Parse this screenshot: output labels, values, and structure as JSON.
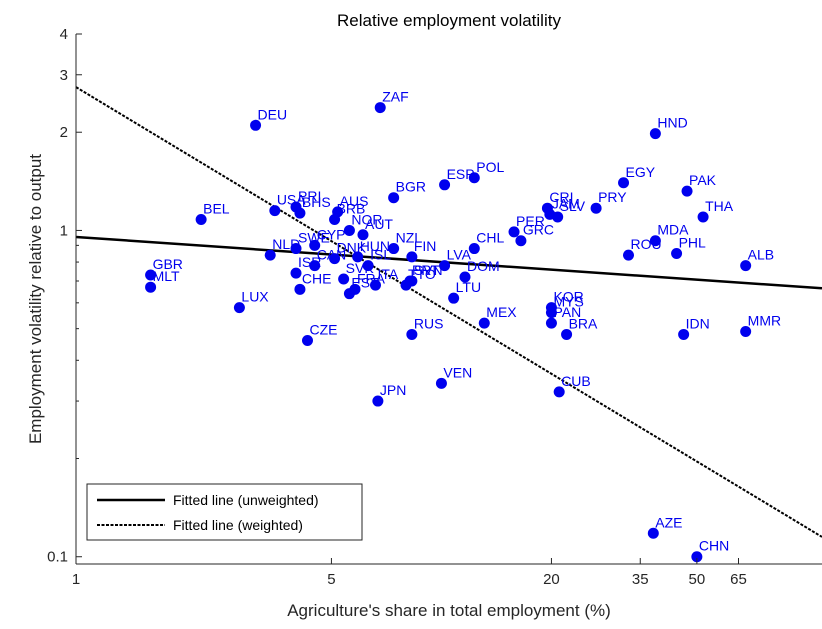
{
  "chart_data": {
    "type": "scatter",
    "title": "Relative employment volatility",
    "xlabel": "Agriculture's share in total employment (%)",
    "ylabel": "Employment volatility relative to output",
    "xscale": "log",
    "yscale": "log",
    "xlim": [
      1,
      110
    ],
    "ylim": [
      0.095,
      4
    ],
    "xticks": [
      {
        "value": 1,
        "label": "1"
      },
      {
        "value": 5,
        "label": "5"
      },
      {
        "value": 20,
        "label": "20"
      },
      {
        "value": 35,
        "label": "35"
      },
      {
        "value": 50,
        "label": "50"
      },
      {
        "value": 65,
        "label": "65"
      }
    ],
    "yticks": [
      {
        "value": 0.1,
        "label": "0.1"
      },
      {
        "value": 1,
        "label": "1"
      },
      {
        "value": 2,
        "label": "2"
      },
      {
        "value": 3,
        "label": "3"
      },
      {
        "value": 4,
        "label": "4"
      }
    ],
    "grid": false,
    "legend_position": "bottom-left",
    "marker_color": "#0000ee",
    "label_color": "#0000ee",
    "points": [
      {
        "label": "GBR",
        "x": 1.6,
        "y": 0.73
      },
      {
        "label": "MLT",
        "x": 1.6,
        "y": 0.67
      },
      {
        "label": "BEL",
        "x": 2.2,
        "y": 1.08
      },
      {
        "label": "LUX",
        "x": 2.8,
        "y": 0.58
      },
      {
        "label": "DEU",
        "x": 3.1,
        "y": 2.1
      },
      {
        "label": "USA",
        "x": 3.5,
        "y": 1.15
      },
      {
        "label": "NLD",
        "x": 3.4,
        "y": 0.84
      },
      {
        "label": "PRI",
        "x": 4.0,
        "y": 1.18
      },
      {
        "label": "BHS",
        "x": 4.1,
        "y": 1.13
      },
      {
        "label": "SWE",
        "x": 4.0,
        "y": 0.88
      },
      {
        "label": "ISR",
        "x": 4.0,
        "y": 0.74
      },
      {
        "label": "CHE",
        "x": 4.1,
        "y": 0.66
      },
      {
        "label": "CAN",
        "x": 4.5,
        "y": 0.78
      },
      {
        "label": "CYP",
        "x": 4.5,
        "y": 0.9
      },
      {
        "label": "CZE",
        "x": 4.3,
        "y": 0.46
      },
      {
        "label": "AUS",
        "x": 5.2,
        "y": 1.14
      },
      {
        "label": "BRB",
        "x": 5.1,
        "y": 1.08
      },
      {
        "label": "DNK",
        "x": 5.1,
        "y": 0.82
      },
      {
        "label": "SVK",
        "x": 5.4,
        "y": 0.71
      },
      {
        "label": "NOR",
        "x": 5.6,
        "y": 1.0
      },
      {
        "label": "AUT",
        "x": 6.1,
        "y": 0.97
      },
      {
        "label": "HUN",
        "x": 5.9,
        "y": 0.83
      },
      {
        "label": "FRA",
        "x": 5.8,
        "y": 0.66
      },
      {
        "label": "EST",
        "x": 5.6,
        "y": 0.64
      },
      {
        "label": "ISL",
        "x": 6.3,
        "y": 0.78
      },
      {
        "label": "ITA",
        "x": 6.6,
        "y": 0.68
      },
      {
        "label": "ZAF",
        "x": 6.8,
        "y": 2.38
      },
      {
        "label": "JPN",
        "x": 6.7,
        "y": 0.3
      },
      {
        "label": "BGR",
        "x": 7.4,
        "y": 1.26
      },
      {
        "label": "NZL",
        "x": 7.4,
        "y": 0.88
      },
      {
        "label": "FIN",
        "x": 8.3,
        "y": 0.83
      },
      {
        "label": "PRT",
        "x": 8.2,
        "y": 0.7
      },
      {
        "label": "SVN",
        "x": 8.3,
        "y": 0.7
      },
      {
        "label": "TTO",
        "x": 8.0,
        "y": 0.68
      },
      {
        "label": "LTU",
        "x": 10.8,
        "y": 0.62
      },
      {
        "label": "RUS",
        "x": 8.3,
        "y": 0.48
      },
      {
        "label": "ESP",
        "x": 10.2,
        "y": 1.38
      },
      {
        "label": "POL",
        "x": 12.3,
        "y": 1.45
      },
      {
        "label": "LVA",
        "x": 10.2,
        "y": 0.78
      },
      {
        "label": "DOM",
        "x": 11.6,
        "y": 0.72
      },
      {
        "label": "VEN",
        "x": 10.0,
        "y": 0.34
      },
      {
        "label": "MEX",
        "x": 13.1,
        "y": 0.52
      },
      {
        "label": "CHL",
        "x": 12.3,
        "y": 0.88
      },
      {
        "label": "PER",
        "x": 15.8,
        "y": 0.99
      },
      {
        "label": "GRC",
        "x": 16.5,
        "y": 0.93
      },
      {
        "label": "CRI",
        "x": 19.5,
        "y": 1.17
      },
      {
        "label": "JAM",
        "x": 19.8,
        "y": 1.12
      },
      {
        "label": "SLV",
        "x": 20.8,
        "y": 1.1
      },
      {
        "label": "KOR",
        "x": 20.0,
        "y": 0.58
      },
      {
        "label": "MYS",
        "x": 20.0,
        "y": 0.56
      },
      {
        "label": "PAN",
        "x": 20.0,
        "y": 0.52
      },
      {
        "label": "BRA",
        "x": 22.0,
        "y": 0.48
      },
      {
        "label": "CUB",
        "x": 21.0,
        "y": 0.32
      },
      {
        "label": "PRY",
        "x": 26.5,
        "y": 1.17
      },
      {
        "label": "EGY",
        "x": 31.5,
        "y": 1.4
      },
      {
        "label": "ROU",
        "x": 32.5,
        "y": 0.84
      },
      {
        "label": "HND",
        "x": 38.5,
        "y": 1.98
      },
      {
        "label": "MDA",
        "x": 38.5,
        "y": 0.93
      },
      {
        "label": "PHL",
        "x": 44.0,
        "y": 0.85
      },
      {
        "label": "PAK",
        "x": 47.0,
        "y": 1.32
      },
      {
        "label": "THA",
        "x": 52.0,
        "y": 1.1
      },
      {
        "label": "IDN",
        "x": 46.0,
        "y": 0.48
      },
      {
        "label": "ALB",
        "x": 68.0,
        "y": 0.78
      },
      {
        "label": "MMR",
        "x": 68.0,
        "y": 0.49
      },
      {
        "label": "AZE",
        "x": 38.0,
        "y": 0.118
      },
      {
        "label": "CHN",
        "x": 50.0,
        "y": 0.1
      }
    ],
    "lines": [
      {
        "name": "Fitted line (unweighted)",
        "style": "solid",
        "x": [
          1,
          110
        ],
        "y": [
          0.955,
          0.665
        ]
      },
      {
        "name": "Fitted line (weighted)",
        "style": "dashed",
        "x": [
          1,
          110
        ],
        "y": [
          2.75,
          0.115
        ]
      }
    ]
  }
}
